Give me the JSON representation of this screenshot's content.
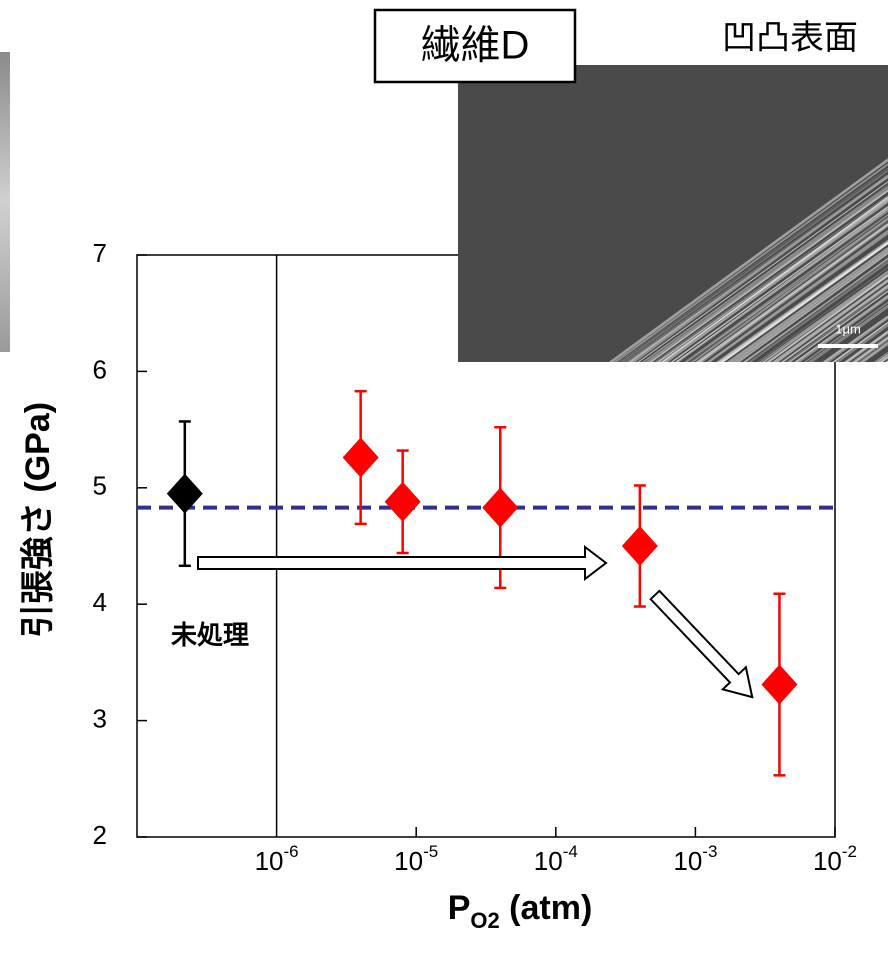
{
  "chart_data": {
    "type": "scatter",
    "y_label": "引張強さ (GPa)",
    "x_label": {
      "text": "P",
      "subscript": "O2",
      "suffix": " (atm)"
    },
    "x_scale": "log",
    "xlim": [
      1e-07,
      0.01
    ],
    "xticks": [
      {
        "value": 1e-06,
        "label": "10",
        "exponent": "-6"
      },
      {
        "value": 1e-05,
        "label": "10",
        "exponent": "-5"
      },
      {
        "value": 0.0001,
        "label": "10",
        "exponent": "-4"
      },
      {
        "value": 0.001,
        "label": "10",
        "exponent": "-3"
      },
      {
        "value": 0.01,
        "label": "10",
        "exponent": "-2"
      }
    ],
    "ylim": [
      2,
      7
    ],
    "yticks": [
      2,
      3,
      4,
      5,
      6,
      7
    ],
    "series": [
      {
        "color": "#000000",
        "x": [
          2.2e-07
        ],
        "values": [
          4.95
        ],
        "errors": [
          0.62
        ]
      },
      {
        "color": "#ff0000",
        "x": [
          4e-06,
          8e-06,
          4e-05,
          0.0004,
          0.004
        ],
        "values": [
          5.26,
          4.88,
          4.83,
          4.5,
          3.31
        ],
        "errors": [
          0.57,
          0.44,
          0.69,
          0.52,
          0.78
        ]
      }
    ],
    "reference_line": {
      "value": 4.83,
      "color": "#2e3192",
      "style": "dashed"
    },
    "annotations": [
      {
        "text": "未処理"
      }
    ]
  },
  "inset": {
    "title": "繊維D",
    "caption": "凹凸表面",
    "scale_bar": "1μm"
  }
}
